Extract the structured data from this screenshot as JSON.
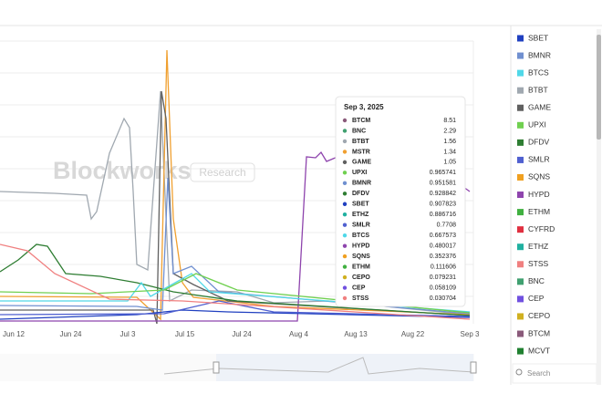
{
  "watermark": {
    "brand": "Blockworks",
    "tag": "Research"
  },
  "x_axis": [
    "Jun 12",
    "Jun 24",
    "Jul 3",
    "Jul 15",
    "Jul 24",
    "Aug 4",
    "Aug 13",
    "Aug 22",
    "Sep 3"
  ],
  "tooltip": {
    "title": "Sep 3, 2025",
    "rows": [
      {
        "name": "BTCM",
        "value": "8.51",
        "color": "#8a5a7a"
      },
      {
        "name": "BNC",
        "value": "2.29",
        "color": "#40a070"
      },
      {
        "name": "BTBT",
        "value": "1.56",
        "color": "#a0a8b0"
      },
      {
        "name": "MSTR",
        "value": "1.34",
        "color": "#f0a030"
      },
      {
        "name": "GAME",
        "value": "1.05",
        "color": "#606060"
      },
      {
        "name": "UPXI",
        "value": "0.965741",
        "color": "#70d050"
      },
      {
        "name": "BMNR",
        "value": "0.951581",
        "color": "#7090d0"
      },
      {
        "name": "DFDV",
        "value": "0.928842",
        "color": "#2e7d32"
      },
      {
        "name": "SBET",
        "value": "0.907823",
        "color": "#2040c0"
      },
      {
        "name": "ETHZ",
        "value": "0.886716",
        "color": "#20b0a0"
      },
      {
        "name": "SMLR",
        "value": "0.7708",
        "color": "#5060d0"
      },
      {
        "name": "BTCS",
        "value": "0.667573",
        "color": "#50d8e8"
      },
      {
        "name": "HYPD",
        "value": "0.480017",
        "color": "#8e44ad"
      },
      {
        "name": "SQNS",
        "value": "0.352376",
        "color": "#f0a020"
      },
      {
        "name": "ETHM",
        "value": "0.111606",
        "color": "#40b040"
      },
      {
        "name": "CEPO",
        "value": "0.079231",
        "color": "#d0b020"
      },
      {
        "name": "CEP",
        "value": "0.058109",
        "color": "#7050e0"
      },
      {
        "name": "STSS",
        "value": "0.030704",
        "color": "#f08080"
      }
    ]
  },
  "legend": [
    {
      "name": "SBET",
      "color": "#2040c0"
    },
    {
      "name": "BMNR",
      "color": "#7090d0"
    },
    {
      "name": "BTCS",
      "color": "#50d8e8"
    },
    {
      "name": "BTBT",
      "color": "#a0a8b0"
    },
    {
      "name": "GAME",
      "color": "#606060"
    },
    {
      "name": "UPXI",
      "color": "#70d050"
    },
    {
      "name": "DFDV",
      "color": "#2e7d32"
    },
    {
      "name": "SMLR",
      "color": "#5060d0"
    },
    {
      "name": "SQNS",
      "color": "#f0a020"
    },
    {
      "name": "HYPD",
      "color": "#8e44ad"
    },
    {
      "name": "ETHM",
      "color": "#40b040"
    },
    {
      "name": "CYFRD",
      "color": "#e03040"
    },
    {
      "name": "ETHZ",
      "color": "#20b0a0"
    },
    {
      "name": "STSS",
      "color": "#f08080"
    },
    {
      "name": "BNC",
      "color": "#40a070"
    },
    {
      "name": "CEP",
      "color": "#7050e0"
    },
    {
      "name": "CEPO",
      "color": "#d0b020"
    },
    {
      "name": "BTCM",
      "color": "#8a5a7a"
    },
    {
      "name": "MCVT",
      "color": "#208030"
    }
  ],
  "search": {
    "placeholder": "Search"
  }
}
